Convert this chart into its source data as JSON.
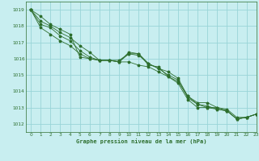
{
  "title": "Graphe pression niveau de la mer (hPa)",
  "bg_color": "#c8eef0",
  "grid_color": "#99d4d8",
  "line_color": "#2d6e2d",
  "xlim": [
    -0.5,
    23
  ],
  "ylim": [
    1011.5,
    1019.5
  ],
  "yticks": [
    1012,
    1013,
    1014,
    1015,
    1016,
    1017,
    1018,
    1019
  ],
  "xticks": [
    0,
    1,
    2,
    3,
    4,
    5,
    6,
    7,
    8,
    9,
    10,
    11,
    12,
    13,
    14,
    15,
    16,
    17,
    18,
    19,
    20,
    21,
    22,
    23
  ],
  "series": [
    [
      1019.0,
      1018.6,
      1018.1,
      1017.8,
      1017.5,
      1016.1,
      1016.0,
      1015.9,
      1015.9,
      1015.8,
      1016.4,
      1016.3,
      1015.6,
      1015.5,
      1014.9,
      1014.6,
      1013.7,
      1013.3,
      1013.3,
      1013.0,
      1012.9,
      1012.4,
      1012.4,
      1012.6
    ],
    [
      1019.0,
      1018.1,
      1017.9,
      1017.4,
      1017.1,
      1016.5,
      1016.1,
      1015.9,
      1015.9,
      1015.9,
      1016.3,
      1016.3,
      1015.7,
      1015.4,
      1015.0,
      1014.7,
      1013.6,
      1013.2,
      1013.0,
      1012.9,
      1012.8,
      1012.3,
      1012.4,
      1012.6
    ],
    [
      1019.0,
      1017.9,
      1017.5,
      1017.1,
      1016.8,
      1016.3,
      1016.0,
      1015.9,
      1015.9,
      1015.8,
      1015.8,
      1015.6,
      1015.5,
      1015.2,
      1014.9,
      1014.5,
      1013.5,
      1013.0,
      1013.0,
      1013.0,
      1012.8,
      1012.3,
      1012.4,
      1012.6
    ],
    [
      1019.0,
      1018.3,
      1018.0,
      1017.6,
      1017.3,
      1016.8,
      1016.4,
      1015.9,
      1015.9,
      1015.8,
      1016.3,
      1016.2,
      1015.7,
      1015.4,
      1015.2,
      1014.8,
      1013.7,
      1013.2,
      1013.1,
      1012.9,
      1012.8,
      1012.3,
      1012.4,
      1012.6
    ]
  ]
}
